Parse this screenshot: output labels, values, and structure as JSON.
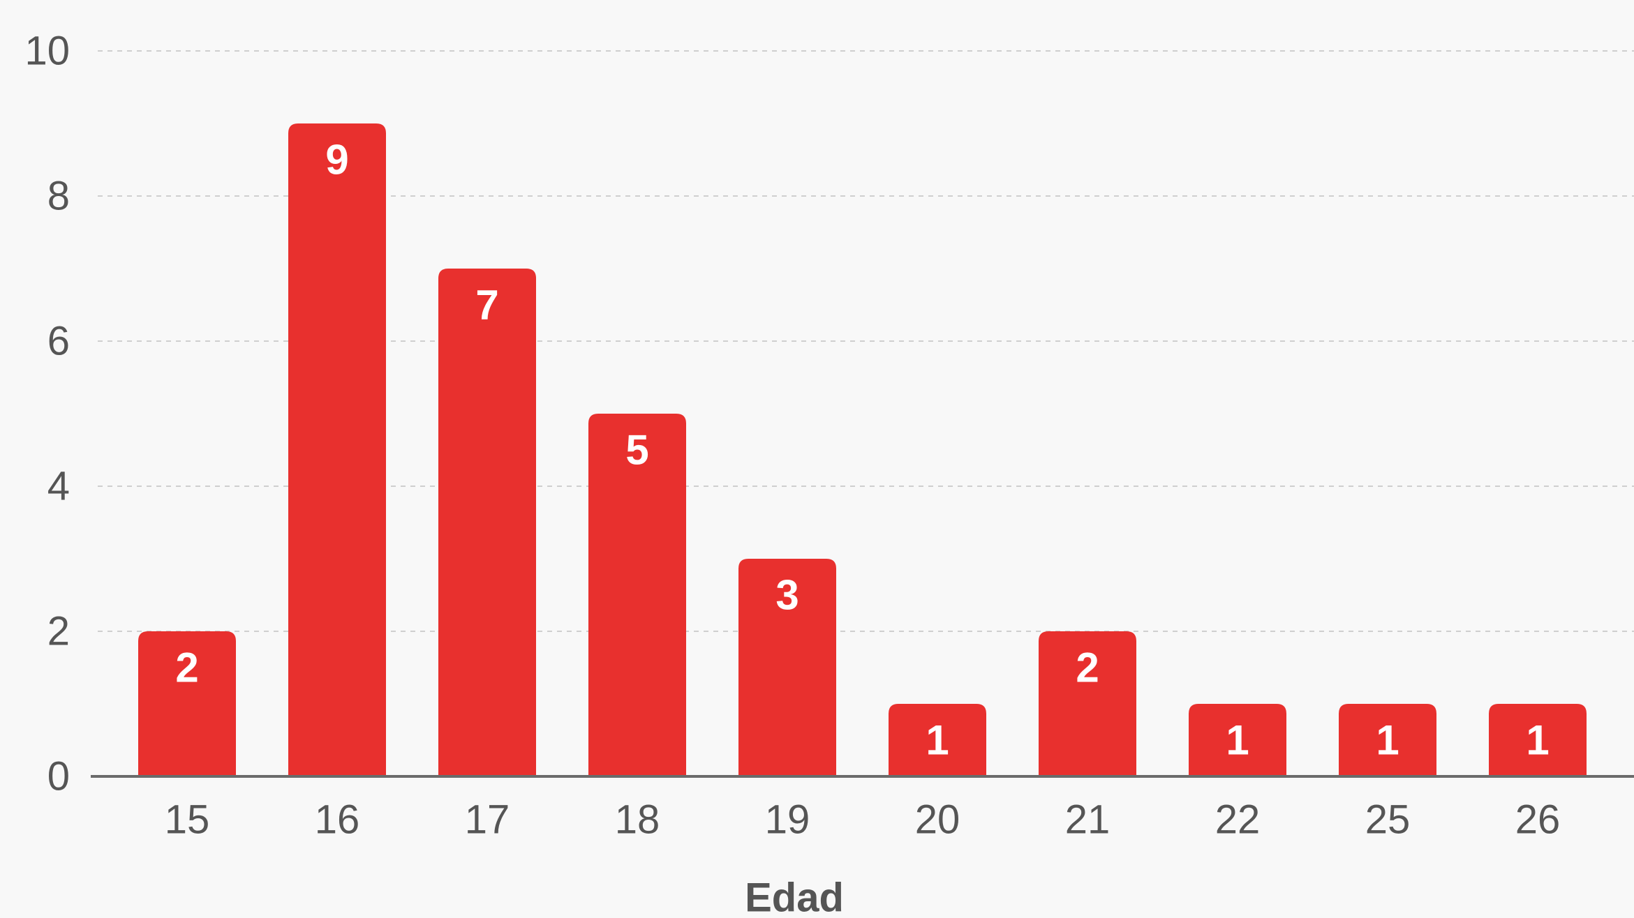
{
  "chart_data": {
    "type": "bar",
    "categories": [
      "15",
      "16",
      "17",
      "18",
      "19",
      "20",
      "21",
      "22",
      "25",
      "26"
    ],
    "values": [
      2,
      9,
      7,
      5,
      3,
      1,
      2,
      1,
      1,
      1
    ],
    "title": "",
    "xlabel": "Edad",
    "ylabel": "",
    "ylim": [
      0,
      10
    ],
    "yticks": [
      0,
      2,
      4,
      6,
      8,
      10
    ],
    "grid": true,
    "bar_color": "#e8302e",
    "data_label_color": "#ffffff"
  }
}
